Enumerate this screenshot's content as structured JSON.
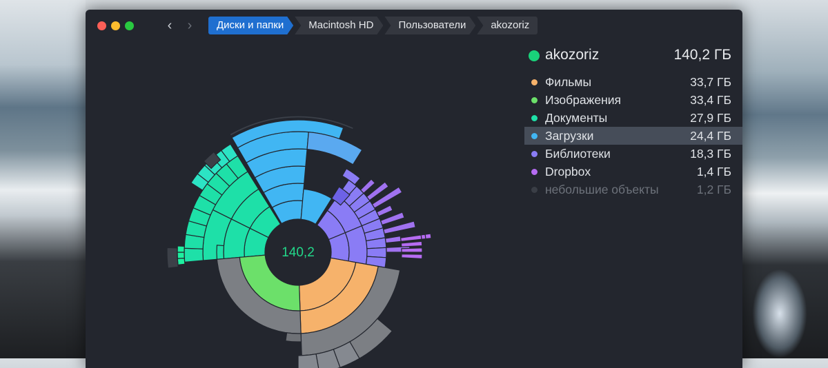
{
  "window": {
    "breadcrumbs": [
      "Диски и папки",
      "Macintosh HD",
      "Пользователи",
      "akozoriz"
    ]
  },
  "chart": {
    "center_label": "140,2"
  },
  "legend": {
    "root": {
      "name": "akozoriz",
      "size": "140,2 ГБ",
      "color": "#19d27a"
    },
    "items": [
      {
        "label": "Фильмы",
        "size": "33,7 ГБ",
        "color": "#f6b26b"
      },
      {
        "label": "Изображения",
        "size": "33,4 ГБ",
        "color": "#6ce06a"
      },
      {
        "label": "Документы",
        "size": "27,9 ГБ",
        "color": "#1ee0a8"
      },
      {
        "label": "Загрузки",
        "size": "24,4 ГБ",
        "color": "#41b6f3",
        "selected": true
      },
      {
        "label": "Библиотеки",
        "size": "18,3 ГБ",
        "color": "#8a7cf5"
      },
      {
        "label": "Dropbox",
        "size": "1,4 ГБ",
        "color": "#b66cf2"
      },
      {
        "label": "небольшие объекты",
        "size": "1,2 ГБ",
        "color": "#3a3e46",
        "dim": true
      }
    ]
  }
}
